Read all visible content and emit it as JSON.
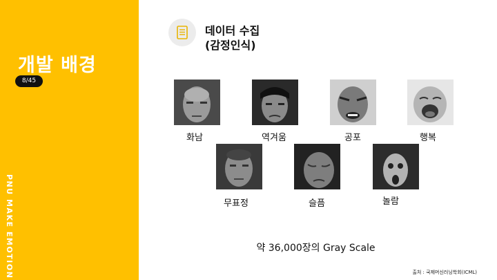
{
  "sidebar": {
    "title": "개발 배경",
    "page_counter": "8/45",
    "vertical_text": "PNU MAKE EMOTION"
  },
  "header": {
    "icon": "document-icon",
    "title_line1": "데이터 수집",
    "title_line2": "(감정인식)"
  },
  "faces": [
    {
      "label": "화남"
    },
    {
      "label": "역겨움"
    },
    {
      "label": "공포"
    },
    {
      "label": "행복"
    },
    {
      "label": "무표정"
    },
    {
      "label": "슬픔"
    },
    {
      "label": "놀람"
    }
  ],
  "summary": "약 36,000장의 Gray Scale",
  "source": "출처 : 국제머신러닝학회(ICML)",
  "colors": {
    "accent": "#ffc000",
    "icon_bg": "#ececec"
  }
}
